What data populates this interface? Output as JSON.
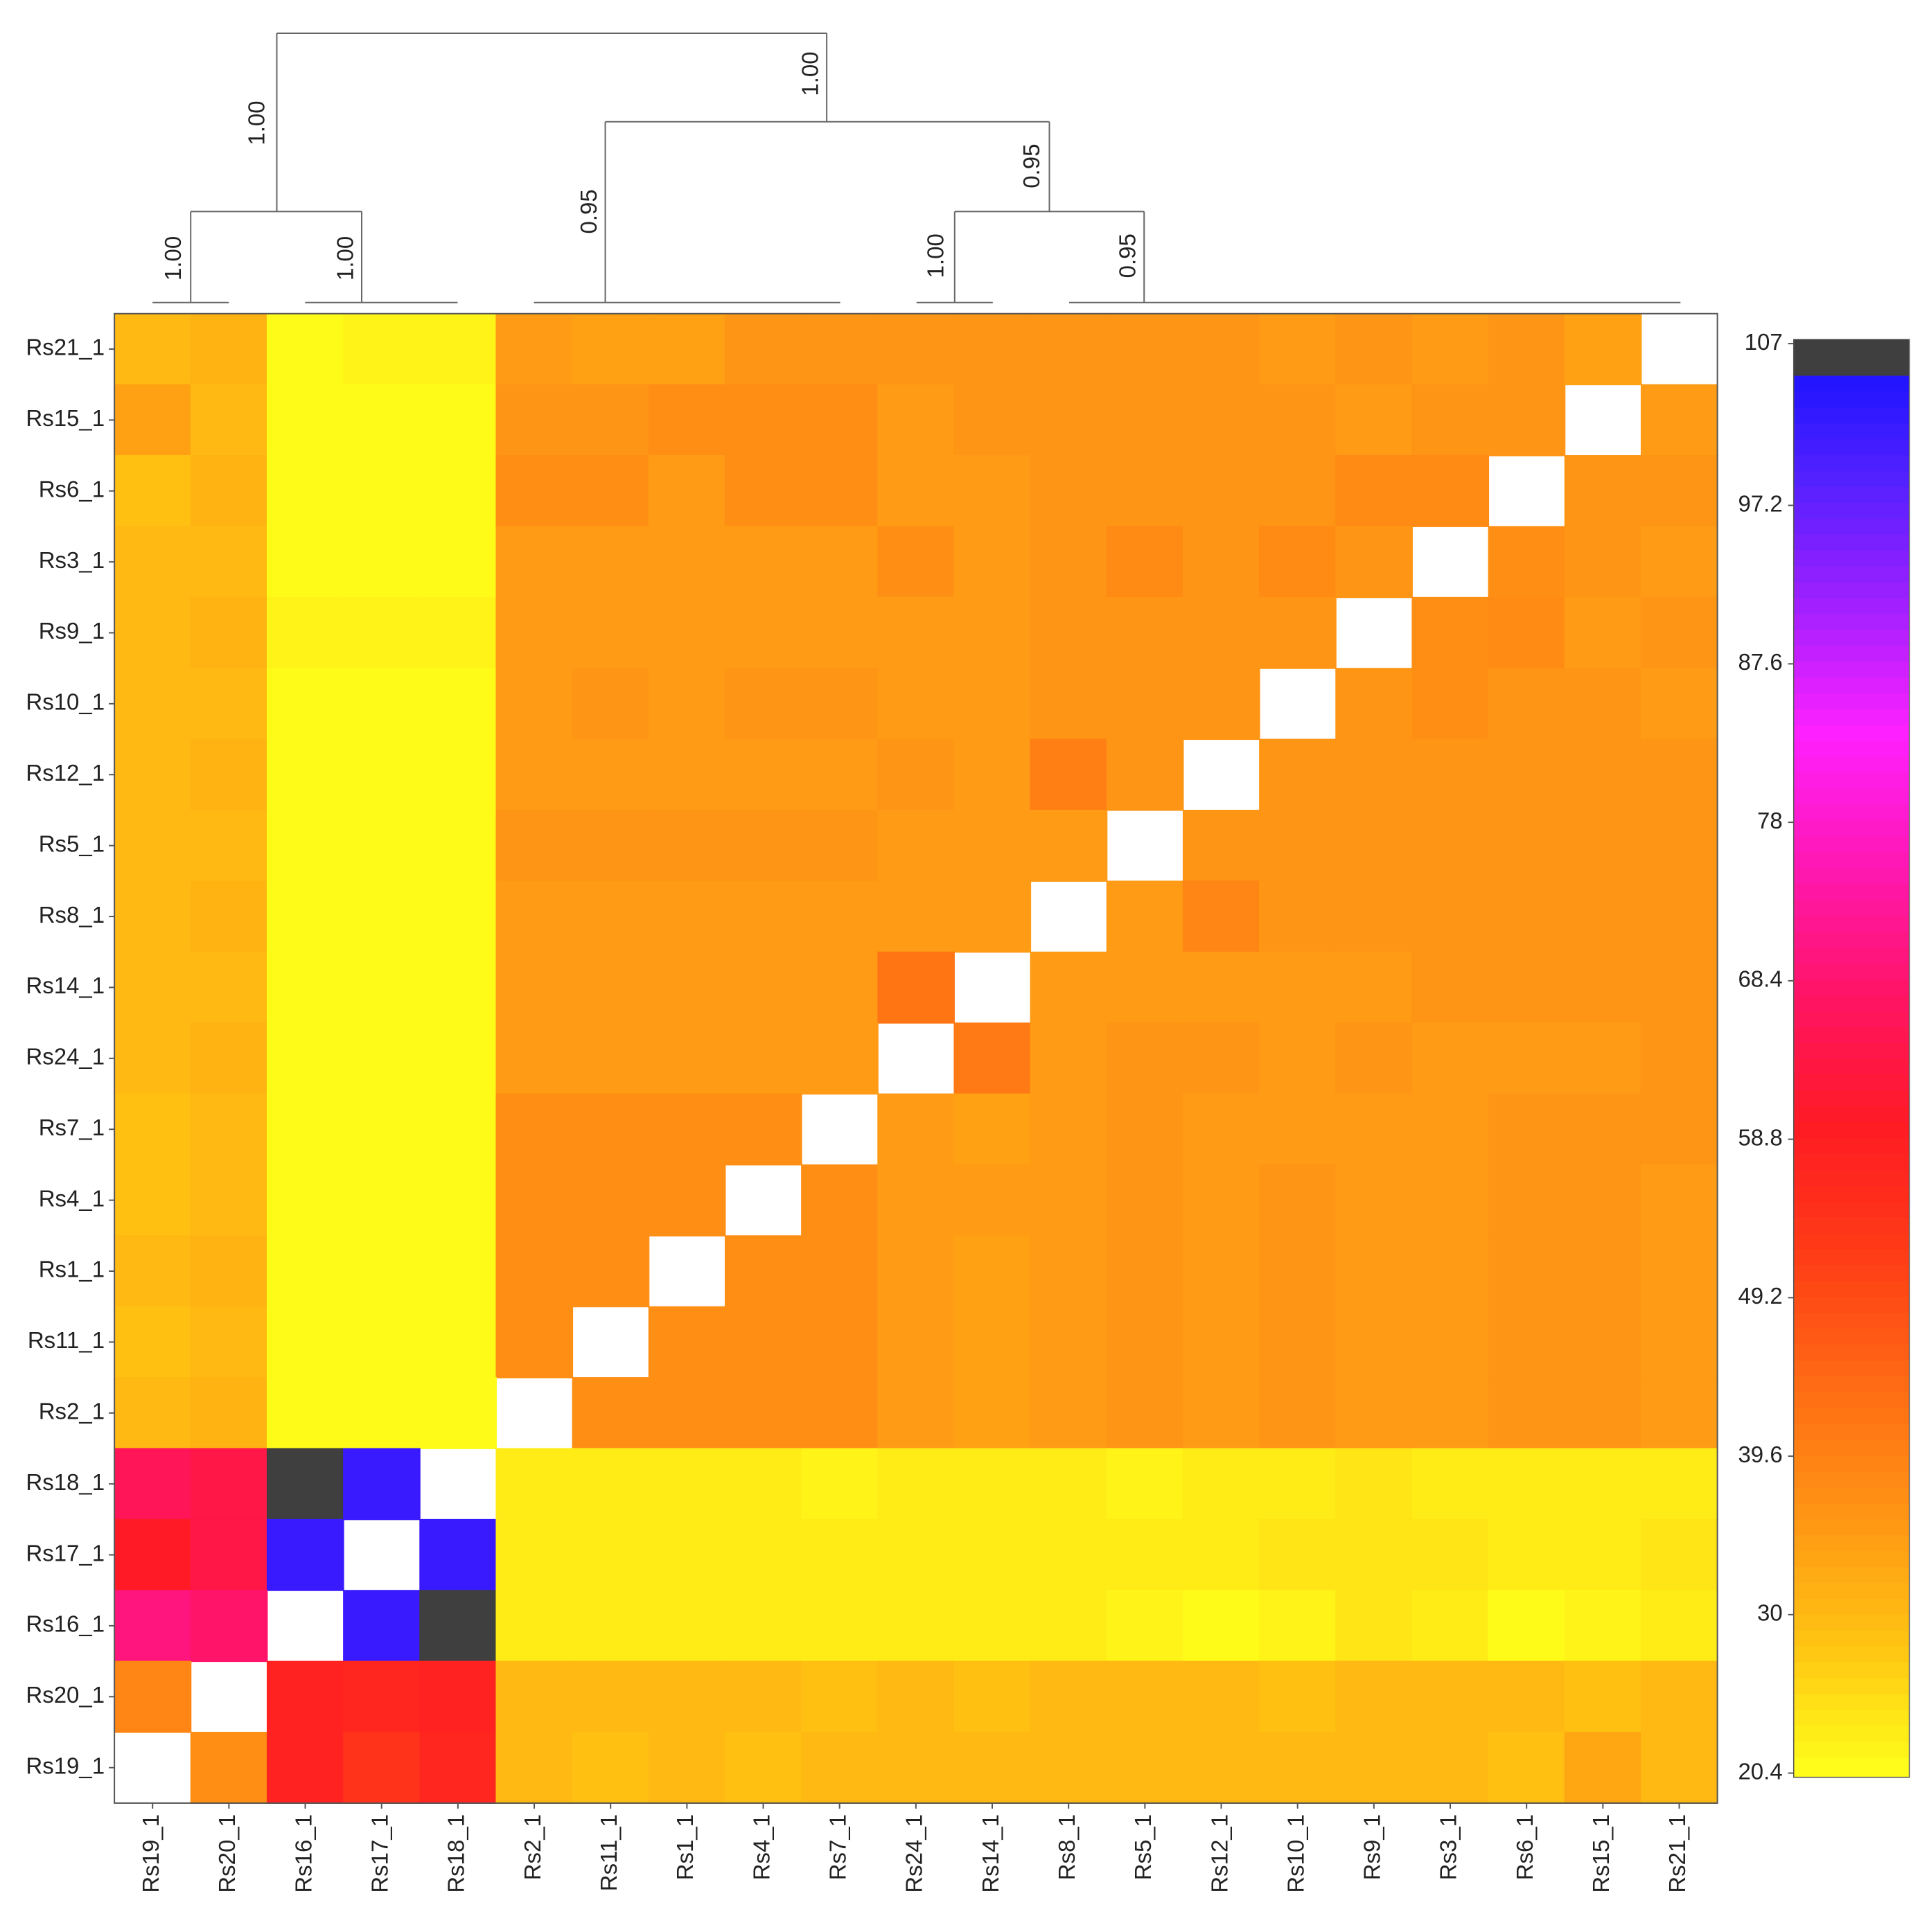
{
  "chart_data": {
    "type": "heatmap",
    "columns": [
      "Rs19_1",
      "Rs20_1",
      "Rs16_1",
      "Rs17_1",
      "Rs18_1",
      "Rs2_1",
      "Rs11_1",
      "Rs1_1",
      "Rs4_1",
      "Rs7_1",
      "Rs24_1",
      "Rs14_1",
      "Rs8_1",
      "Rs5_1",
      "Rs12_1",
      "Rs10_1",
      "Rs9_1",
      "Rs3_1",
      "Rs6_1",
      "Rs15_1",
      "Rs21_1"
    ],
    "rows": [
      "Rs21_1",
      "Rs15_1",
      "Rs6_1",
      "Rs3_1",
      "Rs9_1",
      "Rs10_1",
      "Rs12_1",
      "Rs5_1",
      "Rs8_1",
      "Rs14_1",
      "Rs24_1",
      "Rs7_1",
      "Rs4_1",
      "Rs1_1",
      "Rs11_1",
      "Rs2_1",
      "Rs18_1",
      "Rs17_1",
      "Rs16_1",
      "Rs20_1",
      "Rs19_1"
    ],
    "values": [
      [
        30,
        31,
        21,
        22,
        22,
        35,
        34,
        34,
        36,
        36,
        36,
        36,
        36,
        36,
        36,
        35,
        36,
        35,
        36,
        34,
        null
      ],
      [
        34,
        30,
        21,
        21,
        21,
        36,
        36,
        37,
        37,
        37,
        35,
        36,
        36,
        36,
        36,
        36,
        35,
        36,
        36,
        null,
        35
      ],
      [
        29,
        31,
        21,
        21,
        21,
        37,
        37,
        35,
        37,
        37,
        35,
        35,
        36,
        36,
        36,
        36,
        38,
        38,
        null,
        36,
        36
      ],
      [
        30,
        30,
        21,
        21,
        21,
        35,
        35,
        35,
        35,
        35,
        37,
        35,
        36,
        38,
        36,
        38,
        36,
        null,
        37,
        36,
        35
      ],
      [
        30,
        31,
        22,
        22,
        22,
        35,
        35,
        35,
        35,
        35,
        35,
        35,
        36,
        36,
        36,
        36,
        null,
        37,
        38,
        35,
        36
      ],
      [
        30,
        30,
        21,
        21,
        21,
        35,
        36,
        35,
        36,
        36,
        35,
        35,
        36,
        36,
        36,
        null,
        36,
        37,
        36,
        36,
        35
      ],
      [
        30,
        31,
        21,
        21,
        21,
        35,
        35,
        35,
        35,
        35,
        36,
        35,
        40,
        36,
        null,
        36,
        36,
        36,
        36,
        36,
        36
      ],
      [
        30,
        30,
        21,
        21,
        21,
        36,
        36,
        36,
        36,
        36,
        35,
        35,
        35,
        null,
        36,
        36,
        36,
        36,
        36,
        36,
        36
      ],
      [
        30,
        31,
        21,
        21,
        21,
        35,
        35,
        35,
        35,
        35,
        35,
        35,
        null,
        35,
        39,
        36,
        36,
        36,
        36,
        36,
        36
      ],
      [
        30,
        30,
        21,
        21,
        21,
        35,
        35,
        35,
        35,
        35,
        42,
        null,
        35,
        35,
        35,
        35,
        35,
        36,
        36,
        36,
        36
      ],
      [
        30,
        31,
        21,
        21,
        21,
        35,
        35,
        35,
        35,
        35,
        null,
        41,
        35,
        36,
        36,
        35,
        36,
        35,
        35,
        35,
        36
      ],
      [
        29,
        30,
        21,
        21,
        21,
        37,
        37,
        37,
        37,
        null,
        35,
        34,
        35,
        36,
        35,
        35,
        35,
        35,
        36,
        36,
        36
      ],
      [
        29,
        30,
        21,
        21,
        21,
        37,
        37,
        37,
        null,
        37,
        35,
        35,
        35,
        36,
        35,
        36,
        35,
        35,
        36,
        36,
        35
      ],
      [
        30,
        31,
        21,
        21,
        21,
        37,
        37,
        null,
        37,
        37,
        35,
        34,
        35,
        36,
        35,
        36,
        35,
        35,
        36,
        36,
        35
      ],
      [
        29,
        30,
        21,
        21,
        21,
        37,
        null,
        37,
        37,
        37,
        35,
        34,
        35,
        36,
        35,
        36,
        35,
        35,
        36,
        36,
        35
      ],
      [
        30,
        31,
        21,
        21,
        21,
        null,
        37,
        37,
        37,
        37,
        35,
        34,
        35,
        36,
        35,
        36,
        35,
        35,
        36,
        36,
        35
      ],
      [
        66,
        64,
        107,
        102,
        null,
        23,
        23,
        23,
        23,
        22,
        23,
        23,
        23,
        22,
        23,
        23,
        24,
        23,
        23,
        23,
        23
      ],
      [
        60,
        64,
        102,
        null,
        102,
        23,
        23,
        23,
        23,
        23,
        23,
        23,
        23,
        23,
        23,
        24,
        24,
        24,
        23,
        23,
        24
      ],
      [
        70,
        68,
        null,
        102,
        107,
        23,
        23,
        23,
        23,
        23,
        23,
        23,
        23,
        22,
        21,
        22,
        24,
        23,
        21,
        22,
        23
      ],
      [
        39,
        null,
        58,
        57,
        58,
        30,
        30,
        30,
        30,
        29,
        30,
        29,
        30,
        30,
        30,
        29,
        30,
        30,
        30,
        29,
        30
      ],
      [
        null,
        37,
        58,
        54,
        57,
        30,
        29,
        30,
        29,
        30,
        30,
        30,
        30,
        30,
        30,
        30,
        30,
        30,
        29,
        33,
        30
      ]
    ],
    "zlim": [
      20.4,
      107
    ],
    "zticks": [
      20.4,
      30,
      39.6,
      49.2,
      58.8,
      68.4,
      78,
      87.6,
      97.2,
      107
    ],
    "colors": [
      "#ffff1a",
      "#ffc412",
      "#ff9414",
      "#ff6a14",
      "#ff3c16",
      "#ff1a24",
      "#ff1466",
      "#ff18b4",
      "#ff20ff",
      "#a020ff",
      "#5020ff",
      "#1010ff"
    ],
    "max_color": "#3f3f3f",
    "dendrogram_labels": [
      "1.00",
      "1.00",
      "1.00",
      "1.00",
      "0.95",
      "0.95",
      "1.00",
      "0.95"
    ]
  }
}
